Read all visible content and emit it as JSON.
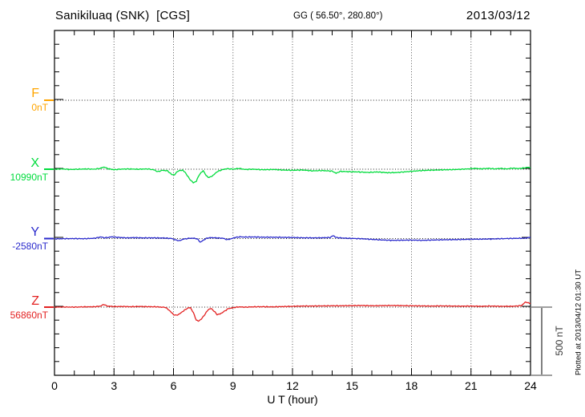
{
  "header": {
    "station_title": "Sanikiluaq (SNK)  [CGS]",
    "geo_coordinates": "GG ( 56.50°, 280.80°)",
    "date": "2013/03/12"
  },
  "x_axis": {
    "title": "U T (hour)",
    "tick_labels": [
      "0",
      "3",
      "6",
      "9",
      "12",
      "15",
      "18",
      "21",
      "24"
    ]
  },
  "scale_bar": {
    "label": "500 nT",
    "span_nT": 500
  },
  "plotted_note": "Plotted at 2013/04/12 01:30 UT",
  "colors": {
    "axis": "#000000",
    "gridline": "#555555",
    "baseline_dotted": "#222222",
    "scale_bar": "#808080"
  },
  "chart_data": {
    "type": "line",
    "title": "Sanikiluaq (SNK) [CGS] magnetogram, 2013/03/12",
    "xlabel": "U T (hour)",
    "x_range": [
      0,
      24
    ],
    "x_major_tick_hours": 3,
    "x_minor_tick_hours": 1,
    "y_minor_tick_nT": 100,
    "trace_baseline_spacing_nT": 500,
    "grid": "dotted vertical lines every 3 h; dotted horizontal line at each trace baseline",
    "legend_position": "left",
    "series": [
      {
        "name": "F",
        "color": "#FFA500",
        "baseline_nT": 0,
        "baseline_label": "0nT",
        "note": "no trace plotted (flat dotted baseline only)",
        "points_hour_offsetnT": []
      },
      {
        "name": "X",
        "color": "#00DC3C",
        "baseline_nT": 10990,
        "baseline_label": "10990nT",
        "points_hour_offsetnT": [
          [
            0,
            0
          ],
          [
            0.4,
            2
          ],
          [
            0.8,
            -2
          ],
          [
            1.2,
            0
          ],
          [
            1.6,
            2
          ],
          [
            2.0,
            0
          ],
          [
            2.3,
            6
          ],
          [
            2.5,
            16
          ],
          [
            2.7,
            4
          ],
          [
            3.0,
            -4
          ],
          [
            3.3,
            0
          ],
          [
            3.7,
            2
          ],
          [
            4.2,
            0
          ],
          [
            4.7,
            2
          ],
          [
            5.0,
            -4
          ],
          [
            5.2,
            -18
          ],
          [
            5.45,
            -8
          ],
          [
            5.7,
            -12
          ],
          [
            5.9,
            -38
          ],
          [
            6.05,
            -42
          ],
          [
            6.2,
            -15
          ],
          [
            6.45,
            -6
          ],
          [
            6.6,
            -25
          ],
          [
            6.8,
            -70
          ],
          [
            7.0,
            -100
          ],
          [
            7.15,
            -88
          ],
          [
            7.3,
            -40
          ],
          [
            7.5,
            -10
          ],
          [
            7.65,
            -48
          ],
          [
            7.8,
            -62
          ],
          [
            8.0,
            -45
          ],
          [
            8.2,
            -18
          ],
          [
            8.45,
            -4
          ],
          [
            8.7,
            4
          ],
          [
            9.0,
            0
          ],
          [
            9.3,
            6
          ],
          [
            9.6,
            -2
          ],
          [
            10.0,
            0
          ],
          [
            10.5,
            -4
          ],
          [
            11.0,
            -2
          ],
          [
            11.5,
            -6
          ],
          [
            12.0,
            -8
          ],
          [
            12.5,
            -6
          ],
          [
            13.0,
            -12
          ],
          [
            13.5,
            -10
          ],
          [
            14.0,
            -14
          ],
          [
            14.2,
            -30
          ],
          [
            14.4,
            -16
          ],
          [
            14.8,
            -18
          ],
          [
            15.3,
            -20
          ],
          [
            15.8,
            -24
          ],
          [
            16.3,
            -20
          ],
          [
            16.8,
            -26
          ],
          [
            17.3,
            -24
          ],
          [
            17.8,
            -18
          ],
          [
            18.3,
            -12
          ],
          [
            18.8,
            -8
          ],
          [
            19.3,
            -6
          ],
          [
            19.8,
            -4
          ],
          [
            20.3,
            -2
          ],
          [
            20.8,
            2
          ],
          [
            21.2,
            6
          ],
          [
            21.5,
            3
          ],
          [
            21.9,
            6
          ],
          [
            22.2,
            2
          ],
          [
            22.5,
            6
          ],
          [
            22.8,
            2
          ],
          [
            23.1,
            8
          ],
          [
            23.4,
            4
          ],
          [
            23.7,
            10
          ],
          [
            23.85,
            14
          ],
          [
            24,
            10
          ]
        ]
      },
      {
        "name": "Y",
        "color": "#2A2ACC",
        "baseline_nT": -2580,
        "baseline_label": "-2580nT",
        "points_hour_offsetnT": [
          [
            0,
            -2
          ],
          [
            0.5,
            -1
          ],
          [
            1.0,
            0
          ],
          [
            1.5,
            -1
          ],
          [
            2.0,
            2
          ],
          [
            2.2,
            8
          ],
          [
            2.35,
            12
          ],
          [
            2.5,
            6
          ],
          [
            2.7,
            8
          ],
          [
            2.9,
            13
          ],
          [
            3.1,
            10
          ],
          [
            3.4,
            7
          ],
          [
            3.7,
            5
          ],
          [
            4.0,
            7
          ],
          [
            4.5,
            5
          ],
          [
            5.0,
            5
          ],
          [
            5.5,
            4
          ],
          [
            5.9,
            1
          ],
          [
            6.1,
            -10
          ],
          [
            6.3,
            -16
          ],
          [
            6.5,
            -4
          ],
          [
            6.8,
            2
          ],
          [
            7.1,
            2
          ],
          [
            7.25,
            -8
          ],
          [
            7.35,
            -28
          ],
          [
            7.5,
            -12
          ],
          [
            7.7,
            4
          ],
          [
            7.9,
            7
          ],
          [
            8.2,
            5
          ],
          [
            8.5,
            2
          ],
          [
            8.7,
            -8
          ],
          [
            8.9,
            -2
          ],
          [
            9.1,
            8
          ],
          [
            9.35,
            13
          ],
          [
            9.6,
            11
          ],
          [
            10.0,
            12
          ],
          [
            10.5,
            10
          ],
          [
            11.0,
            10
          ],
          [
            11.5,
            9
          ],
          [
            12.0,
            8
          ],
          [
            12.5,
            6
          ],
          [
            13.0,
            5
          ],
          [
            13.5,
            6
          ],
          [
            13.9,
            8
          ],
          [
            14.05,
            22
          ],
          [
            14.2,
            8
          ],
          [
            14.5,
            4
          ],
          [
            14.8,
            2
          ],
          [
            15.2,
            0
          ],
          [
            15.6,
            -2
          ],
          [
            16.0,
            -6
          ],
          [
            16.5,
            -10
          ],
          [
            17.0,
            -13
          ],
          [
            17.5,
            -12
          ],
          [
            18.0,
            -11
          ],
          [
            18.5,
            -13
          ],
          [
            19.0,
            -11
          ],
          [
            19.5,
            -9
          ],
          [
            20.0,
            -8
          ],
          [
            20.5,
            -7
          ],
          [
            21.0,
            -5
          ],
          [
            21.5,
            -4
          ],
          [
            22.0,
            -3
          ],
          [
            22.5,
            -1
          ],
          [
            23.0,
            1
          ],
          [
            23.5,
            2
          ],
          [
            23.8,
            4
          ],
          [
            23.95,
            8
          ],
          [
            24,
            9
          ]
        ]
      },
      {
        "name": "Z",
        "color": "#E32222",
        "baseline_nT": 56860,
        "baseline_label": "56860nT",
        "points_hour_offsetnT": [
          [
            0,
            0
          ],
          [
            0.5,
            1
          ],
          [
            1.0,
            0
          ],
          [
            1.5,
            2
          ],
          [
            2.0,
            3
          ],
          [
            2.3,
            7
          ],
          [
            2.5,
            20
          ],
          [
            2.65,
            8
          ],
          [
            3.0,
            4
          ],
          [
            3.4,
            5
          ],
          [
            3.8,
            3
          ],
          [
            4.3,
            5
          ],
          [
            4.8,
            3
          ],
          [
            5.2,
            2
          ],
          [
            5.6,
            -2
          ],
          [
            5.8,
            -25
          ],
          [
            6.0,
            -55
          ],
          [
            6.15,
            -60
          ],
          [
            6.3,
            -50
          ],
          [
            6.5,
            -28
          ],
          [
            6.7,
            -8
          ],
          [
            6.85,
            -3
          ],
          [
            7.0,
            -40
          ],
          [
            7.15,
            -95
          ],
          [
            7.25,
            -103
          ],
          [
            7.4,
            -88
          ],
          [
            7.6,
            -50
          ],
          [
            7.75,
            -18
          ],
          [
            7.9,
            -10
          ],
          [
            8.05,
            -30
          ],
          [
            8.2,
            -55
          ],
          [
            8.35,
            -50
          ],
          [
            8.55,
            -32
          ],
          [
            8.75,
            -12
          ],
          [
            9.0,
            -4
          ],
          [
            9.3,
            2
          ],
          [
            9.6,
            0
          ],
          [
            10.0,
            2
          ],
          [
            10.5,
            3
          ],
          [
            11.0,
            2
          ],
          [
            11.5,
            4
          ],
          [
            12.0,
            6
          ],
          [
            12.5,
            8
          ],
          [
            13.0,
            8
          ],
          [
            13.5,
            9
          ],
          [
            14.0,
            10
          ],
          [
            14.5,
            10
          ],
          [
            15.0,
            11
          ],
          [
            15.5,
            12
          ],
          [
            16.0,
            10
          ],
          [
            16.5,
            11
          ],
          [
            17.0,
            12
          ],
          [
            17.5,
            11
          ],
          [
            18.0,
            10
          ],
          [
            18.5,
            9
          ],
          [
            19.0,
            8
          ],
          [
            19.5,
            9
          ],
          [
            20.0,
            8
          ],
          [
            20.5,
            7
          ],
          [
            21.0,
            8
          ],
          [
            21.5,
            6
          ],
          [
            22.0,
            8
          ],
          [
            22.5,
            6
          ],
          [
            23.0,
            6
          ],
          [
            23.3,
            8
          ],
          [
            23.55,
            12
          ],
          [
            23.75,
            38
          ],
          [
            23.9,
            30
          ],
          [
            24,
            28
          ]
        ]
      }
    ]
  }
}
